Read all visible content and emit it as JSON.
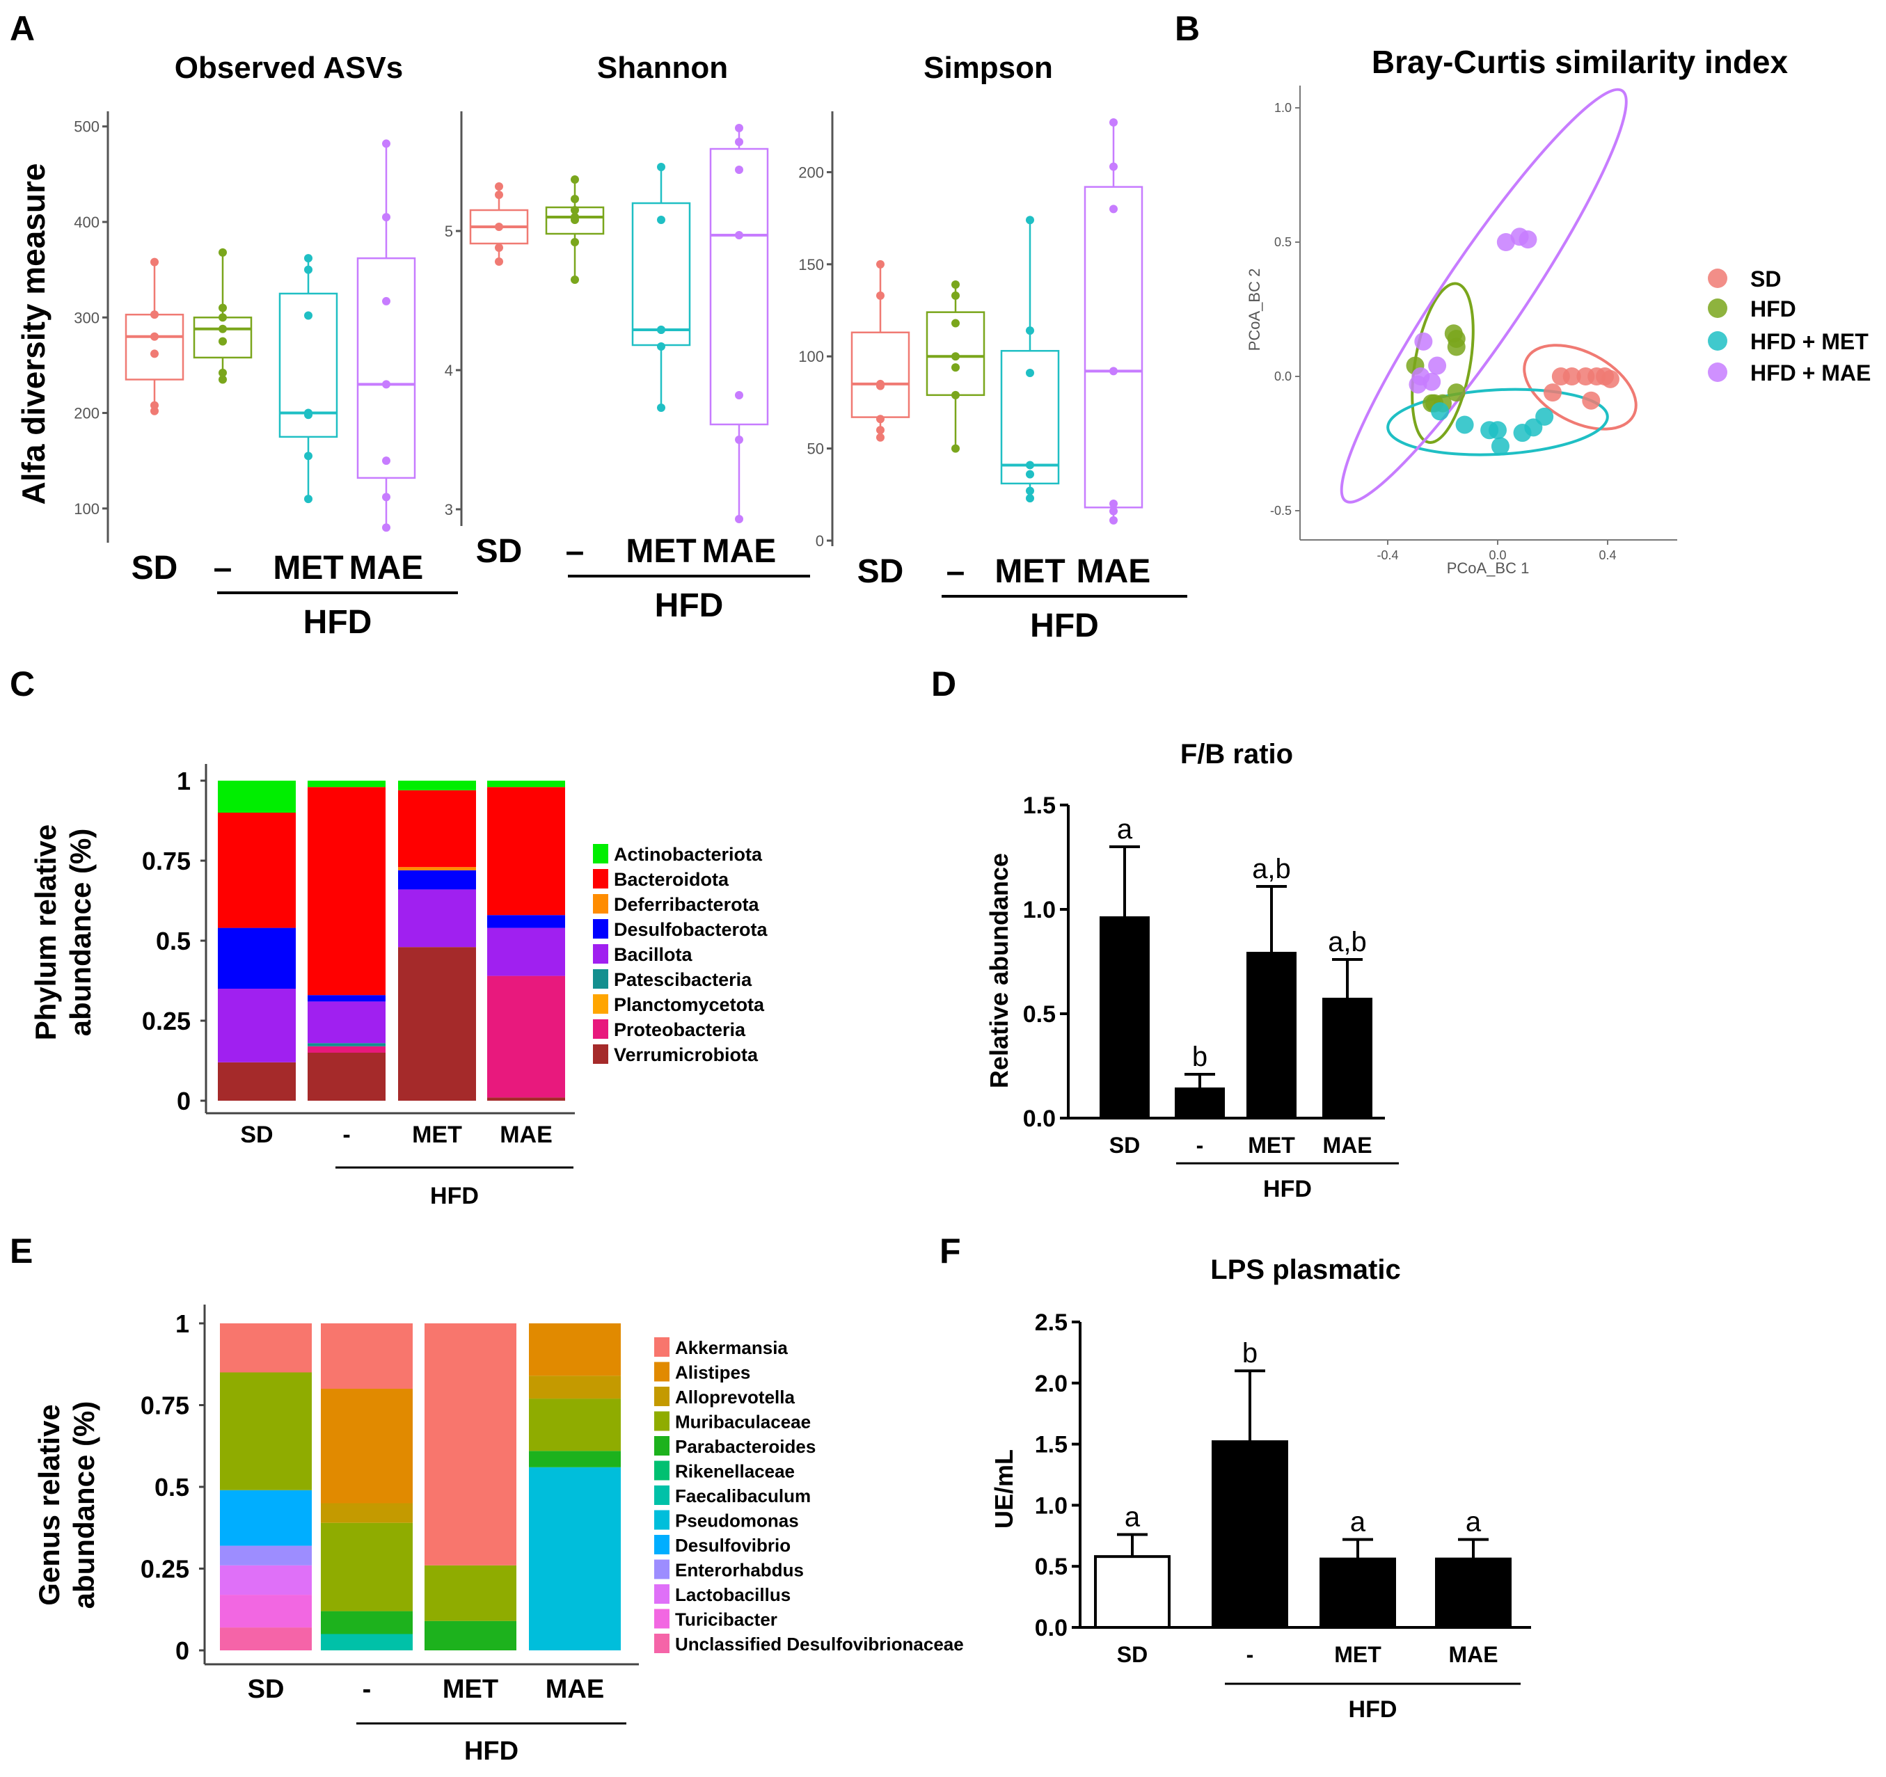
{
  "panels": {
    "A": "A",
    "B": "B",
    "C": "C",
    "D": "D",
    "E": "E",
    "F": "F"
  },
  "panel_a": {
    "ylabel": "Alfa diversity measure",
    "group_label": "HFD",
    "x_labels": [
      "SD",
      "–",
      "MET",
      "MAE"
    ]
  },
  "chart_data": [
    {
      "id": "observed",
      "type": "box",
      "title": "Observed ASVs",
      "ylim": [
        70,
        510
      ],
      "yticks": [
        100,
        200,
        300,
        400,
        500
      ],
      "colors": [
        "#f07a73",
        "#7aa61c",
        "#1fbfc4",
        "#c77cff"
      ],
      "boxes": [
        {
          "q1": 235,
          "med": 280,
          "q3": 303,
          "lo": 200,
          "hi": 358,
          "pts": [
            358,
            303,
            280,
            262,
            208,
            202
          ]
        },
        {
          "q1": 258,
          "med": 288,
          "q3": 300,
          "lo": 235,
          "hi": 368,
          "pts": [
            368,
            310,
            300,
            288,
            275,
            242,
            235
          ]
        },
        {
          "q1": 175,
          "med": 200,
          "q3": 325,
          "lo": 110,
          "hi": 362,
          "pts": [
            362,
            350,
            302,
            200,
            198,
            155,
            110
          ]
        },
        {
          "q1": 132,
          "med": 230,
          "q3": 362,
          "lo": 80,
          "hi": 482,
          "pts": [
            482,
            405,
            317,
            230,
            150,
            112,
            80
          ]
        }
      ]
    },
    {
      "id": "shannon",
      "type": "box",
      "title": "Shannon",
      "ylim": [
        2.92,
        5.82
      ],
      "yticks": [
        3,
        4,
        5
      ],
      "colors": [
        "#f07a73",
        "#7aa61c",
        "#1fbfc4",
        "#c77cff"
      ],
      "boxes": [
        {
          "q1": 4.91,
          "med": 5.03,
          "q3": 5.15,
          "lo": 4.78,
          "hi": 5.32,
          "pts": [
            5.32,
            5.26,
            5.03,
            4.88,
            4.78
          ]
        },
        {
          "q1": 4.98,
          "med": 5.1,
          "q3": 5.17,
          "lo": 4.65,
          "hi": 5.37,
          "pts": [
            5.37,
            5.23,
            5.15,
            5.1,
            5.08,
            4.92,
            4.65
          ]
        },
        {
          "q1": 4.18,
          "med": 4.29,
          "q3": 5.2,
          "lo": 3.73,
          "hi": 5.46,
          "pts": [
            5.46,
            5.08,
            4.29,
            4.29,
            4.17,
            3.73
          ]
        },
        {
          "q1": 3.61,
          "med": 4.97,
          "q3": 5.59,
          "lo": 2.93,
          "hi": 5.74,
          "pts": [
            5.74,
            5.64,
            5.44,
            4.97,
            3.82,
            3.5,
            2.93
          ]
        }
      ]
    },
    {
      "id": "simpson",
      "type": "box",
      "title": "Simpson",
      "ylim": [
        0,
        230
      ],
      "yticks": [
        0,
        50,
        100,
        150,
        200
      ],
      "colors": [
        "#f07a73",
        "#7aa61c",
        "#1fbfc4",
        "#c77cff"
      ],
      "boxes": [
        {
          "q1": 67,
          "med": 85,
          "q3": 113,
          "lo": 56,
          "hi": 150,
          "pts": [
            150,
            133,
            85,
            84,
            66,
            60,
            56
          ]
        },
        {
          "q1": 79,
          "med": 100,
          "q3": 124,
          "lo": 50,
          "hi": 139,
          "pts": [
            139,
            133,
            118,
            100,
            94,
            79,
            50
          ]
        },
        {
          "q1": 31,
          "med": 41,
          "q3": 103,
          "lo": 23,
          "hi": 174,
          "pts": [
            174,
            114,
            91,
            41,
            36,
            27,
            23
          ]
        },
        {
          "q1": 18,
          "med": 92,
          "q3": 192,
          "lo": 11,
          "hi": 227,
          "pts": [
            227,
            203,
            180,
            92,
            20,
            16,
            11
          ]
        }
      ]
    },
    {
      "id": "pcoa",
      "type": "scatter",
      "title": "Bray-Curtis similarity index",
      "xlabel": "PCoA_BC 1",
      "ylabel": "PCoA_BC 2",
      "xlim": [
        -0.6,
        0.6
      ],
      "ylim": [
        -0.6,
        1.1
      ],
      "xticks": [
        -0.4,
        0.0,
        0.4
      ],
      "xticklabels": [
        "-0.4",
        "0.0",
        "0.4"
      ],
      "yticks": [
        -0.5,
        0.0,
        0.5,
        1.0
      ],
      "yticklabels": [
        "-0.5",
        "0.0",
        "0.5",
        "1.0"
      ],
      "series": [
        {
          "name": "SD",
          "color": "#f07a73",
          "x": [
            0.23,
            0.27,
            0.32,
            0.36,
            0.41,
            0.39,
            0.2,
            0.34
          ],
          "y": [
            0.0,
            0.0,
            0.0,
            0.0,
            -0.01,
            0.0,
            -0.06,
            -0.09
          ],
          "ellipse": {
            "cx": 0.3,
            "cy": -0.04,
            "rx": 0.22,
            "ry": 0.13,
            "rot": 28
          }
        },
        {
          "name": "HFD",
          "color": "#7aa61c",
          "x": [
            -0.16,
            -0.15,
            -0.15,
            -0.3,
            -0.23,
            -0.2,
            -0.15,
            -0.24
          ],
          "y": [
            0.16,
            0.14,
            0.11,
            0.04,
            -0.1,
            -0.1,
            -0.06,
            -0.1
          ],
          "ellipse": {
            "cx": -0.2,
            "cy": 0.05,
            "rx": 0.1,
            "ry": 0.3,
            "rot": 10
          }
        },
        {
          "name": "HFD + MET",
          "color": "#1fbfc4",
          "x": [
            -0.12,
            -0.03,
            0.0,
            0.01,
            0.09,
            0.13,
            0.17,
            -0.21
          ],
          "y": [
            -0.18,
            -0.2,
            -0.2,
            -0.26,
            -0.21,
            -0.19,
            -0.15,
            -0.13
          ],
          "ellipse": {
            "cx": 0.0,
            "cy": -0.17,
            "rx": 0.4,
            "ry": 0.12,
            "rot": -3
          }
        },
        {
          "name": "HFD + MAE",
          "color": "#c77cff",
          "x": [
            -0.27,
            -0.28,
            -0.29,
            -0.24,
            -0.22,
            0.03,
            0.08,
            0.11
          ],
          "y": [
            0.13,
            0.0,
            -0.03,
            -0.02,
            0.04,
            0.5,
            0.52,
            0.51
          ],
          "ellipse": {
            "cx": -0.05,
            "cy": 0.3,
            "rx": 0.9,
            "ry": 0.15,
            "rot": -56
          }
        }
      ]
    },
    {
      "id": "phylum",
      "type": "stacked_bar",
      "ylabel": "Phylum relative abundance (%)",
      "ylabel_lines": [
        "Phylum relative",
        "abundance (%)"
      ],
      "categories": [
        "SD",
        "-",
        "MET",
        "MAE"
      ],
      "group_label": "HFD",
      "yticks": [
        0,
        0.25,
        0.5,
        0.75,
        1
      ],
      "yticklabels": [
        "0",
        "0.25",
        "0.5",
        "0.75",
        "1"
      ],
      "series": [
        {
          "name": "Verrumicrobiota",
          "color": "#a52a2a",
          "values": [
            0.12,
            0.15,
            0.48,
            0.01
          ]
        },
        {
          "name": "Proteobacteria",
          "color": "#e8197d",
          "values": [
            0.0,
            0.02,
            0.0,
            0.38
          ]
        },
        {
          "name": "Planctomycetota",
          "color": "#ffa500",
          "values": [
            0.0,
            0.0,
            0.0,
            0.0
          ]
        },
        {
          "name": "Patescibacteria",
          "color": "#148f8f",
          "values": [
            0.0,
            0.01,
            0.0,
            0.0
          ]
        },
        {
          "name": "Bacillota",
          "color": "#a020f0",
          "values": [
            0.23,
            0.13,
            0.18,
            0.15
          ]
        },
        {
          "name": "Desulfobacterota",
          "color": "#0000ff",
          "values": [
            0.19,
            0.02,
            0.06,
            0.04
          ]
        },
        {
          "name": "Deferribacterota",
          "color": "#ff8c00",
          "values": [
            0.0,
            0.0,
            0.01,
            0.0
          ]
        },
        {
          "name": "Bacteroidota",
          "color": "#ff0000",
          "values": [
            0.36,
            0.65,
            0.24,
            0.4
          ]
        },
        {
          "name": "Actinobacteriota",
          "color": "#00ee00",
          "values": [
            0.1,
            0.02,
            0.03,
            0.02
          ]
        }
      ],
      "legend": [
        "Actinobacteriota",
        "Bacteroidota",
        "Deferribacterota",
        "Desulfobacterota",
        "Bacillota",
        "Patescibacteria",
        "Planctomycetota",
        "Proteobacteria",
        "Verrumicrobiota"
      ]
    },
    {
      "id": "fb",
      "type": "bar",
      "title": "F/B ratio",
      "ylabel": "Relative abundance",
      "categories": [
        "SD",
        "-",
        "MET",
        "MAE"
      ],
      "group_label": "HFD",
      "values": [
        0.96,
        0.14,
        0.79,
        0.57
      ],
      "errors": [
        0.34,
        0.07,
        0.32,
        0.19
      ],
      "letters": [
        "a",
        "b",
        "a,b",
        "a,b"
      ],
      "fills": [
        "#000000",
        "#000000",
        "#000000",
        "#000000"
      ],
      "ylim": [
        0,
        1.5
      ],
      "yticks": [
        0.0,
        0.5,
        1.0,
        1.5
      ],
      "yticklabels": [
        "0.0",
        "0.5",
        "1.0",
        "1.5"
      ]
    },
    {
      "id": "genus",
      "type": "stacked_bar",
      "ylabel": "Genus relative abundance (%)",
      "ylabel_lines": [
        "Genus relative",
        "abundance (%)"
      ],
      "categories": [
        "SD",
        "-",
        "MET",
        "MAE"
      ],
      "group_label": "HFD",
      "yticks": [
        0,
        0.25,
        0.5,
        0.75,
        1
      ],
      "yticklabels": [
        "0",
        "0.25",
        "0.5",
        "0.75",
        "1"
      ],
      "series": [
        {
          "name": "Unclassified Desulfovibrionaceae",
          "color": "#f564a8",
          "values": [
            0.07,
            0.0,
            0.0,
            0.0
          ]
        },
        {
          "name": "Turicibacter",
          "color": "#f267e2",
          "values": [
            0.1,
            0.0,
            0.0,
            0.0
          ]
        },
        {
          "name": "Lactobacillus",
          "color": "#df70f8",
          "values": [
            0.09,
            0.0,
            0.0,
            0.0
          ]
        },
        {
          "name": "Enterorhabdus",
          "color": "#9d8dff",
          "values": [
            0.06,
            0.0,
            0.0,
            0.0
          ]
        },
        {
          "name": "Desulfovibrio",
          "color": "#00aeff",
          "values": [
            0.17,
            0.0,
            0.0,
            0.0
          ]
        },
        {
          "name": "Pseudomonas",
          "color": "#00bedb",
          "values": [
            0.0,
            0.0,
            0.0,
            0.56
          ]
        },
        {
          "name": "Faecalibaculum",
          "color": "#00c1a8",
          "values": [
            0.0,
            0.05,
            0.0,
            0.0
          ]
        },
        {
          "name": "Rikenellaceae",
          "color": "#00c071",
          "values": [
            0.0,
            0.0,
            0.0,
            0.0
          ]
        },
        {
          "name": "Parabacteroides",
          "color": "#1db21d",
          "values": [
            0.0,
            0.07,
            0.09,
            0.05
          ]
        },
        {
          "name": "Muribaculaceae",
          "color": "#8fac00",
          "values": [
            0.36,
            0.27,
            0.17,
            0.16
          ]
        },
        {
          "name": "Alloprevotella",
          "color": "#c49a00",
          "values": [
            0.0,
            0.06,
            0.0,
            0.07
          ]
        },
        {
          "name": "Alistipes",
          "color": "#e18a00",
          "values": [
            0.0,
            0.35,
            0.0,
            0.16
          ]
        },
        {
          "name": "Akkermansia",
          "color": "#f8766d",
          "values": [
            0.15,
            0.2,
            0.74,
            0.0
          ]
        }
      ],
      "legend": [
        "Akkermansia",
        "Alistipes",
        "Alloprevotella",
        "Muribaculaceae",
        "Parabacteroides",
        "Rikenellaceae",
        "Faecalibaculum",
        "Pseudomonas",
        "Desulfovibrio",
        "Enterorhabdus",
        "Lactobacillus",
        "Turicibacter",
        "Unclassified Desulfovibrionaceae"
      ]
    },
    {
      "id": "lps",
      "type": "bar",
      "title": "LPS plasmatic",
      "ylabel": "UE/mL",
      "categories": [
        "SD",
        "-",
        "MET",
        "MAE"
      ],
      "group_label": "HFD",
      "values": [
        0.58,
        1.52,
        0.56,
        0.56
      ],
      "errors": [
        0.18,
        0.58,
        0.16,
        0.16
      ],
      "letters": [
        "a",
        "b",
        "a",
        "a"
      ],
      "fills": [
        "#ffffff",
        "#000000",
        "#000000",
        "#000000"
      ],
      "ylim": [
        0,
        2.5
      ],
      "yticks": [
        0.0,
        0.5,
        1.0,
        1.5,
        2.0,
        2.5
      ],
      "yticklabels": [
        "0.0",
        "0.5",
        "1.0",
        "1.5",
        "2.0",
        "2.5"
      ]
    }
  ]
}
